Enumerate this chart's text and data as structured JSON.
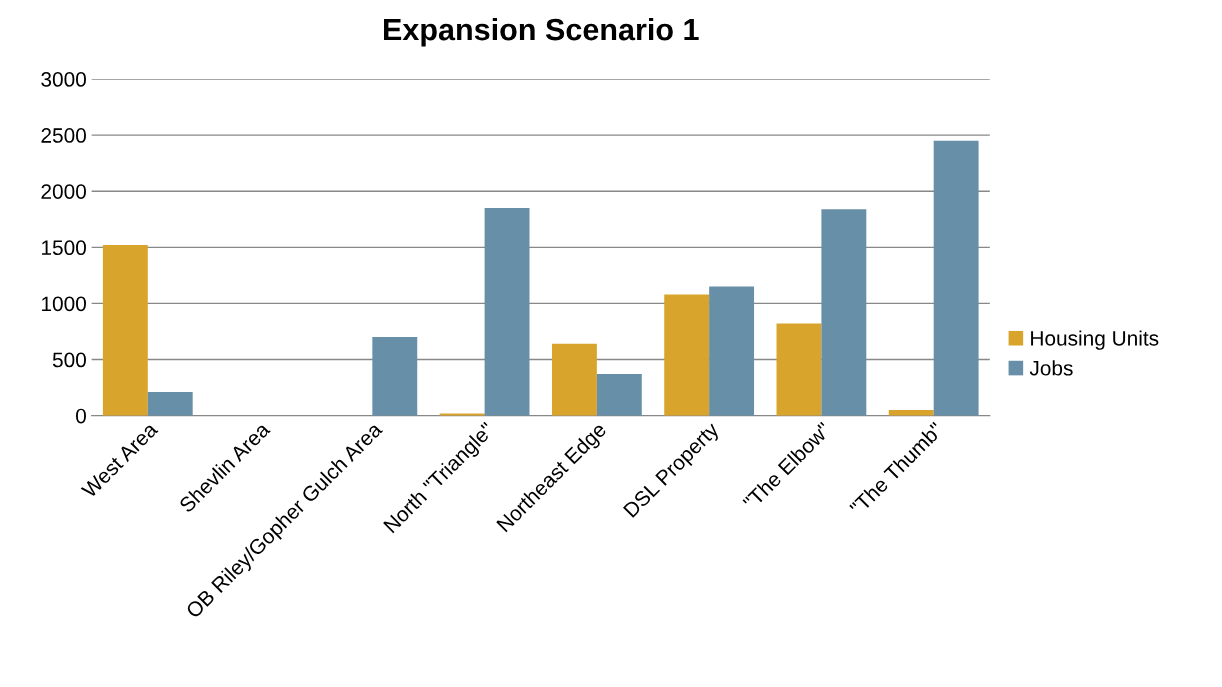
{
  "chart_data": {
    "type": "bar",
    "title": "Expansion Scenario 1",
    "categories": [
      "West Area",
      "Shevlin Area",
      "OB Riley/Gopher Gulch Area",
      "North \"Triangle\"",
      "Northeast Edge",
      "DSL Property",
      "\"The Elbow\"",
      "\"The Thumb\""
    ],
    "series": [
      {
        "name": "Housing Units",
        "color": "#d9a42b",
        "values": [
          1520,
          0,
          0,
          20,
          640,
          1080,
          820,
          50
        ]
      },
      {
        "name": "Jobs",
        "color": "#688fa8",
        "values": [
          210,
          0,
          700,
          1850,
          370,
          1150,
          1840,
          2450
        ]
      }
    ],
    "ylim": [
      0,
      3000
    ],
    "yticks": [
      0,
      500,
      1000,
      1500,
      2000,
      2500,
      3000
    ],
    "grid": "y",
    "legend": "right"
  }
}
